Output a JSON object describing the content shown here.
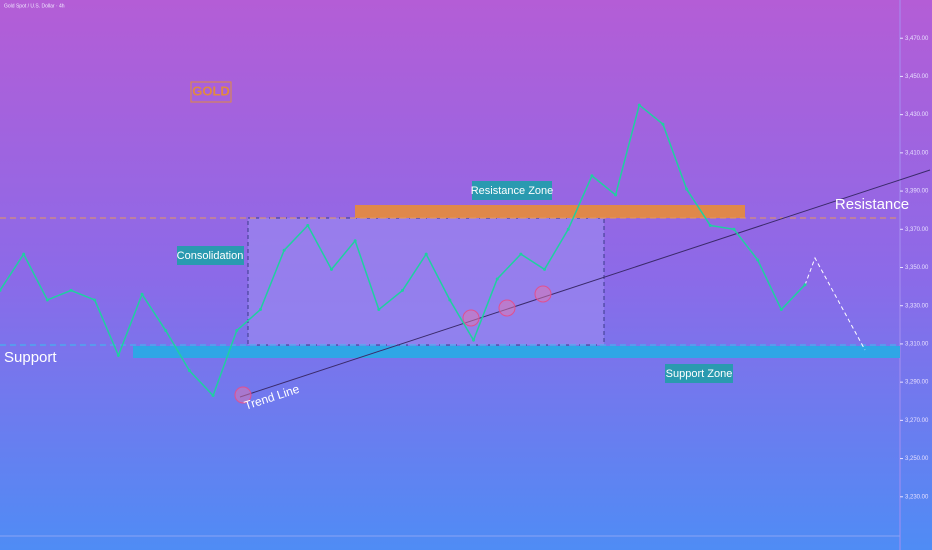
{
  "chart_data": {
    "type": "line",
    "title": "Gold Spot / U.S. Dollar · 4h",
    "categories": [
      null,
      null,
      null,
      null,
      null,
      null,
      null,
      null,
      null,
      null,
      null,
      null,
      null,
      null,
      null,
      null,
      null,
      null,
      null,
      null,
      null,
      null,
      null,
      null,
      null,
      null,
      null,
      null,
      null,
      null,
      null,
      null,
      null,
      null,
      null
    ],
    "values": [
      3338,
      3357,
      3333,
      3338,
      3333,
      3304,
      3336,
      3317,
      3296,
      3283,
      3317,
      3328,
      3359,
      3372,
      3349,
      3364,
      3328,
      3338,
      3357,
      3333,
      3312,
      3344,
      3357,
      3349,
      3370,
      3398,
      3388,
      3435,
      3425,
      3391,
      3372,
      3370,
      3354,
      3328,
      3341
    ],
    "color": "#1fd0a0",
    "ylim": [
      3210,
      3490
    ],
    "yticks": [
      {
        "value": 3230,
        "label": "3,230.00"
      },
      {
        "value": 3250,
        "label": "3,250.00"
      },
      {
        "value": 3270,
        "label": "3,270.00"
      },
      {
        "value": 3290,
        "label": "3,290.00"
      },
      {
        "value": 3310,
        "label": "3,310.00"
      },
      {
        "value": 3330,
        "label": "3,330.00"
      },
      {
        "value": 3350,
        "label": "3,350.00"
      },
      {
        "value": 3370,
        "label": "3,370.00"
      },
      {
        "value": 3390,
        "label": "3,390.00"
      },
      {
        "value": 3410,
        "label": "3,410.00"
      },
      {
        "value": 3430,
        "label": "3,430.00"
      },
      {
        "value": 3450,
        "label": "3,450.00"
      },
      {
        "value": 3470,
        "label": "3,470.00"
      }
    ],
    "annotations": {
      "logo": "GOLD",
      "consolidation": "Consolidation",
      "resistance_zone": "Resistance Zone",
      "resistance": "Resistance",
      "support": "Support",
      "support_zone": "Support Zone",
      "trend_line": "Trend Line"
    }
  }
}
